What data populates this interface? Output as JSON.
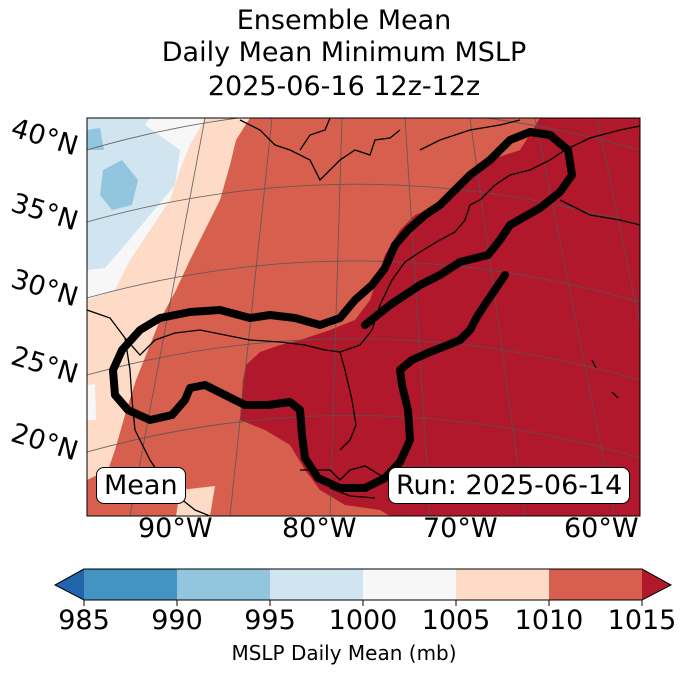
{
  "title": {
    "line1": "Ensemble Mean",
    "line2": "Daily Mean Minimum MSLP",
    "line3": "2025-06-16 12z-12z"
  },
  "map": {
    "lat_labels": [
      "40°N",
      "35°N",
      "30°N",
      "25°N",
      "20°N"
    ],
    "lon_labels": [
      "90°W",
      "80°W",
      "70°W",
      "60°W"
    ],
    "mode_label": "Mean",
    "run_label": "Run: 2025-06-14"
  },
  "colorbar": {
    "ticks": [
      "985",
      "990",
      "995",
      "1000",
      "1005",
      "1010",
      "1015"
    ],
    "label": "MSLP Daily Mean (mb)",
    "colors": [
      "#2166ac",
      "#4393c3",
      "#92c5de",
      "#d1e5f0",
      "#f7f7f7",
      "#fddbc7",
      "#d6604d",
      "#b2182b"
    ]
  }
}
